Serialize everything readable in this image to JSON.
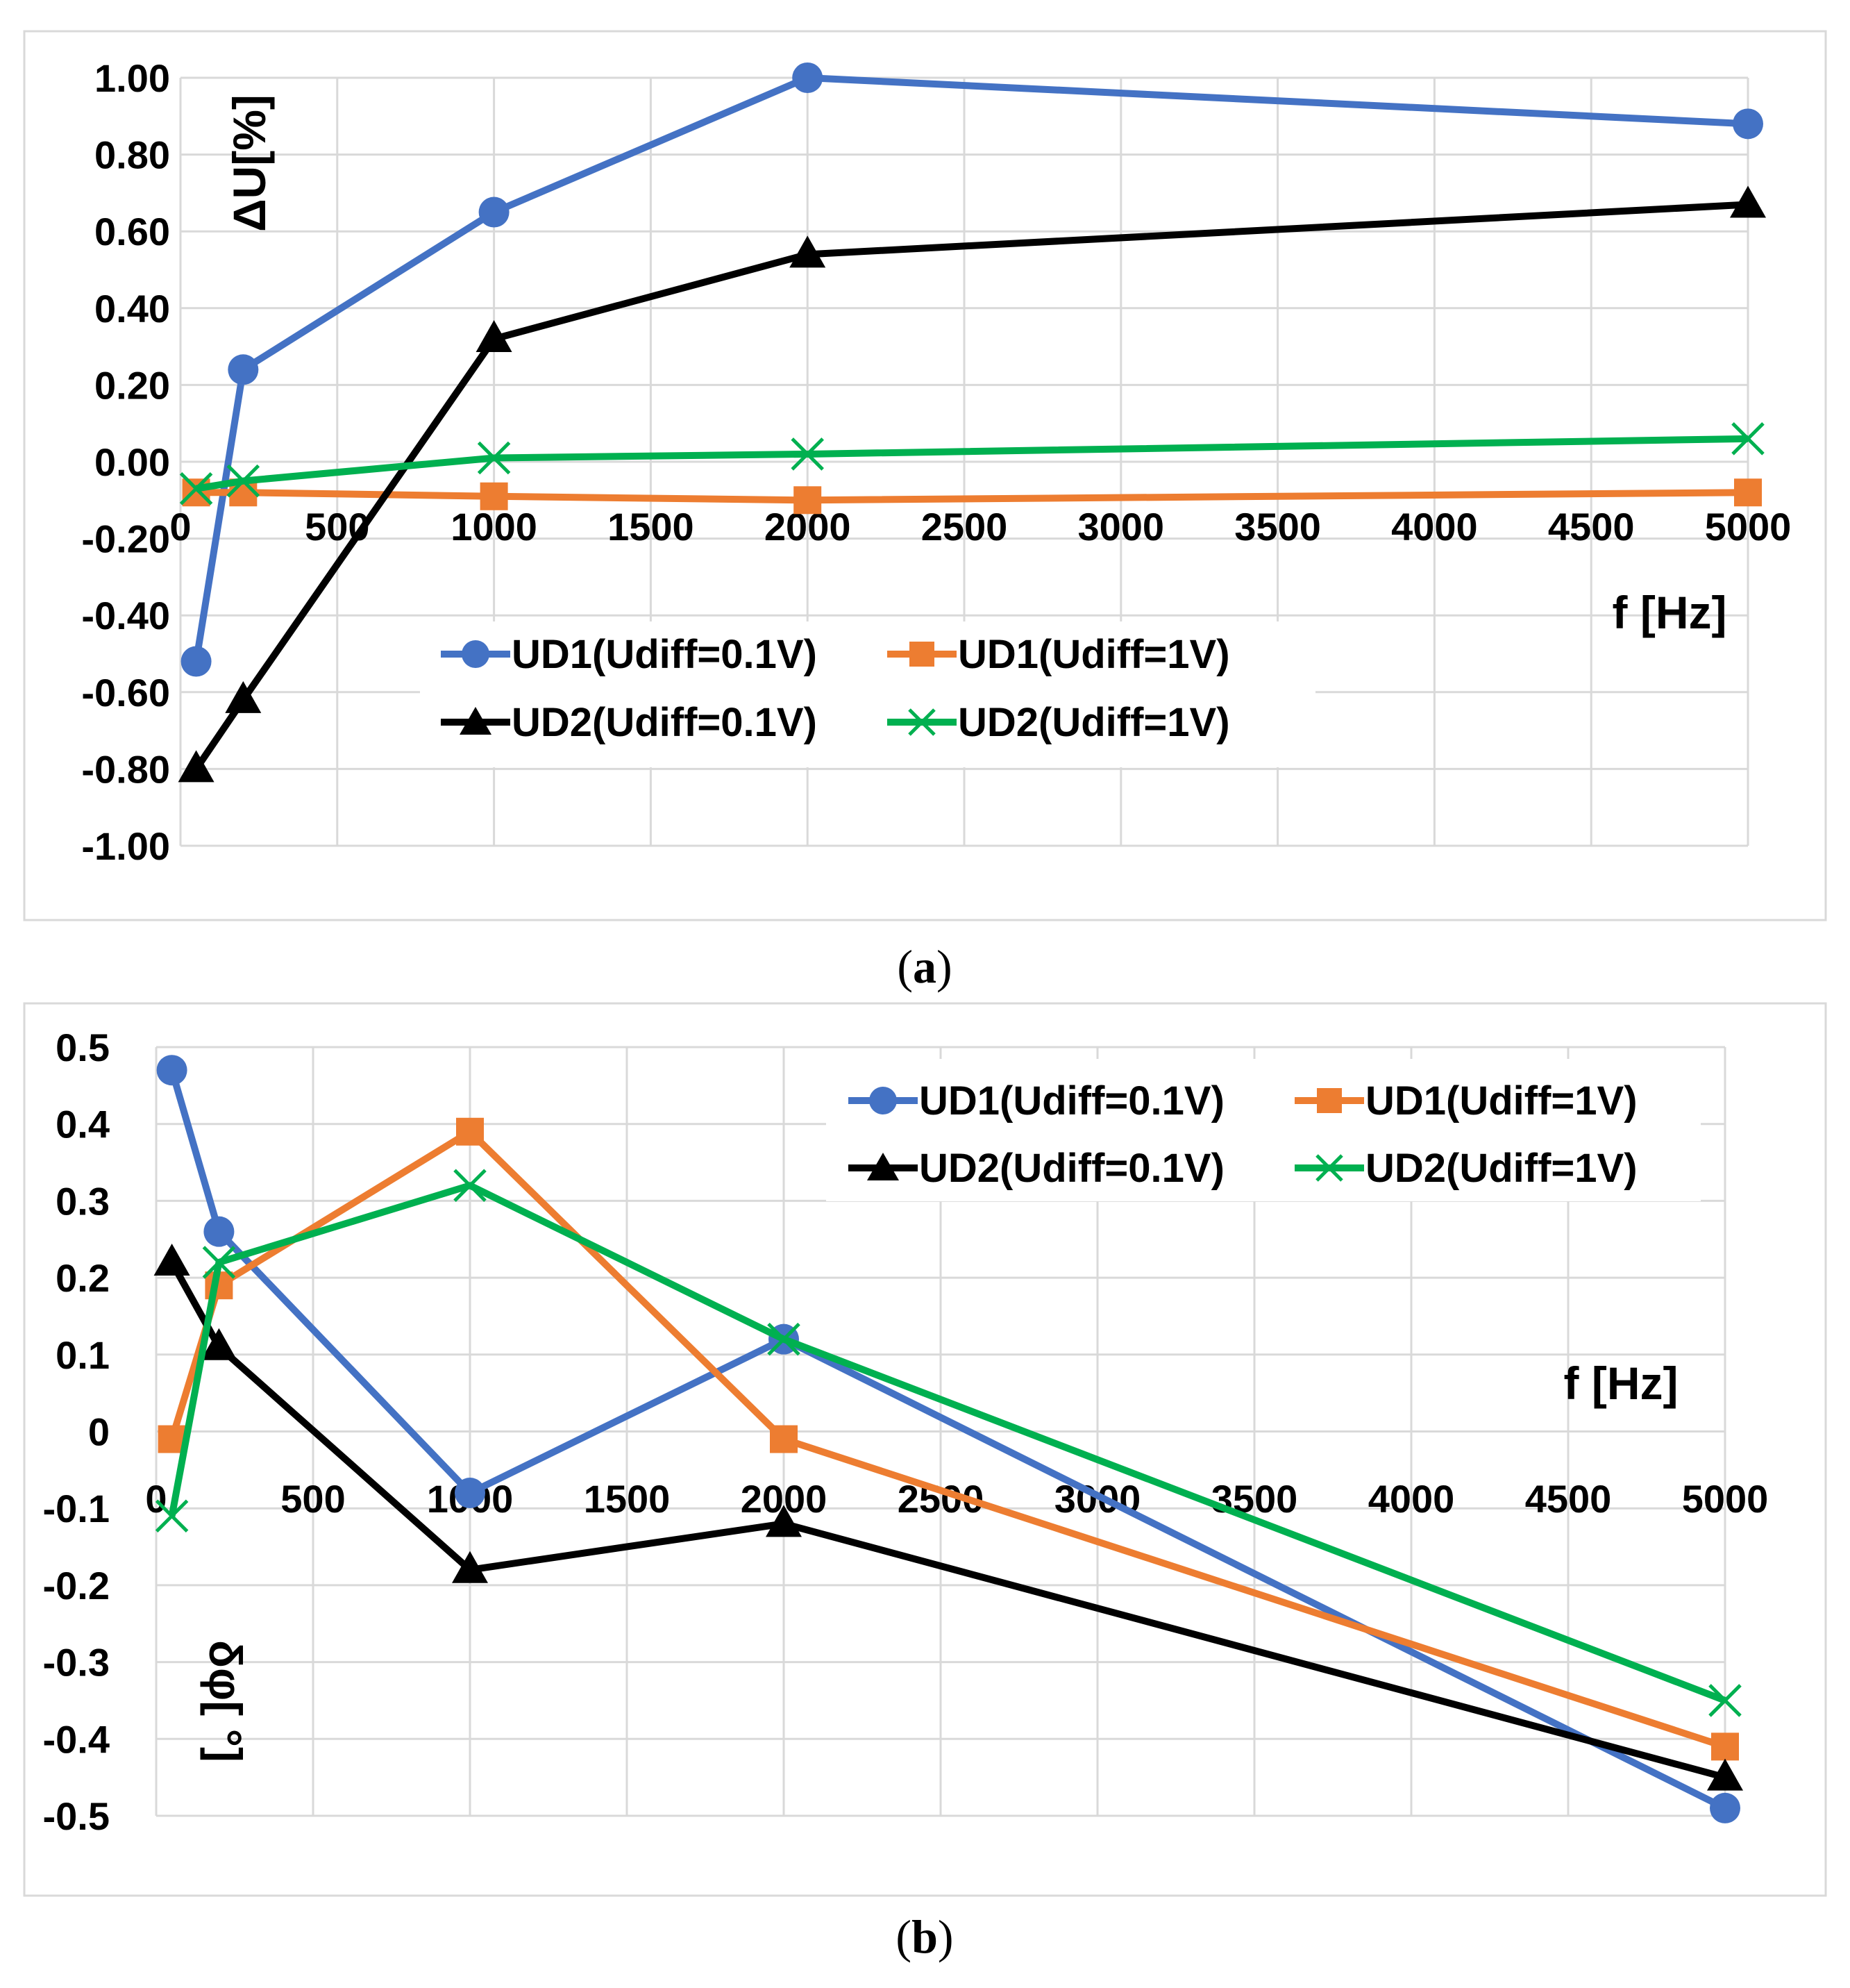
{
  "chart_data": [
    {
      "id": "a",
      "type": "line",
      "caption_open": "(",
      "caption_letter": "a",
      "caption_close": ")",
      "xlabel": "f [Hz]",
      "ylabel": "ΔU[%]",
      "xlim": [
        0,
        5000
      ],
      "ylim": [
        -1.0,
        1.0
      ],
      "xticks": [
        0,
        500,
        1000,
        1500,
        2000,
        2500,
        3000,
        3500,
        4000,
        4500,
        5000
      ],
      "yticks": [
        1.0,
        0.8,
        0.6,
        0.4,
        0.2,
        0.0,
        -0.2,
        -0.4,
        -0.6,
        -0.8,
        -1.0
      ],
      "xtick_labels": [
        "0",
        "500",
        "1000",
        "1500",
        "2000",
        "2500",
        "3000",
        "3500",
        "4000",
        "4500",
        "5000"
      ],
      "ytick_labels": [
        "1.00",
        "0.80",
        "0.60",
        "0.40",
        "0.20",
        "0.00",
        "-0.20",
        "-0.40",
        "-0.60",
        "-0.80",
        "-1.00"
      ],
      "legend_position": "middle",
      "series": [
        {
          "name": "UD1(Udiff=0.1V)",
          "color": "#4472c4",
          "marker": "circle",
          "x": [
            50,
            200,
            1000,
            2000,
            5000
          ],
          "y": [
            -0.52,
            0.24,
            0.65,
            1.0,
            0.88
          ]
        },
        {
          "name": "UD1(Udiff=1V)",
          "color": "#ed7d31",
          "marker": "square",
          "x": [
            50,
            200,
            1000,
            2000,
            5000
          ],
          "y": [
            -0.08,
            -0.08,
            -0.09,
            -0.1,
            -0.08
          ]
        },
        {
          "name": "UD2(Udiff=0.1V)",
          "color": "#000000",
          "marker": "triangle",
          "x": [
            50,
            200,
            1000,
            2000,
            5000
          ],
          "y": [
            -0.8,
            -0.62,
            0.32,
            0.54,
            0.67
          ]
        },
        {
          "name": "UD2(Udiff=1V)",
          "color": "#00b050",
          "marker": "x",
          "x": [
            50,
            200,
            1000,
            2000,
            5000
          ],
          "y": [
            -0.07,
            -0.05,
            0.01,
            0.02,
            0.06
          ]
        }
      ]
    },
    {
      "id": "b",
      "type": "line",
      "caption_open": "(",
      "caption_letter": "b",
      "caption_close": ")",
      "xlabel": "f [Hz]",
      "ylabel": "δφ[ °]",
      "xlim": [
        0,
        5000
      ],
      "ylim": [
        -0.5,
        0.5
      ],
      "xticks": [
        0,
        500,
        1000,
        1500,
        2000,
        2500,
        3000,
        3500,
        4000,
        4500,
        5000
      ],
      "yticks": [
        0.5,
        0.4,
        0.3,
        0.2,
        0.1,
        0,
        -0.1,
        -0.2,
        -0.3,
        -0.4,
        -0.5
      ],
      "xtick_labels": [
        "0",
        "500",
        "1000",
        "1500",
        "2000",
        "2500",
        "3000",
        "3500",
        "4000",
        "4500",
        "5000"
      ],
      "ytick_labels": [
        "0.5",
        "0.4",
        "0.3",
        "0.2",
        "0.1",
        "0",
        "-0.1",
        "-0.2",
        "-0.3",
        "-0.4",
        "-0.5"
      ],
      "legend_position": "top-right",
      "series": [
        {
          "name": "UD1(Udiff=0.1V)",
          "color": "#4472c4",
          "marker": "circle",
          "x": [
            50,
            200,
            1000,
            2000,
            5000
          ],
          "y": [
            0.47,
            0.26,
            -0.08,
            0.12,
            -0.49
          ]
        },
        {
          "name": "UD1(Udiff=1V)",
          "color": "#ed7d31",
          "marker": "square",
          "x": [
            50,
            200,
            1000,
            2000,
            5000
          ],
          "y": [
            -0.01,
            0.19,
            0.39,
            -0.01,
            -0.41
          ]
        },
        {
          "name": "UD2(Udiff=0.1V)",
          "color": "#000000",
          "marker": "triangle",
          "x": [
            50,
            200,
            1000,
            2000,
            5000
          ],
          "y": [
            0.22,
            0.11,
            -0.18,
            -0.12,
            -0.45
          ]
        },
        {
          "name": "UD2(Udiff=1V)",
          "color": "#00b050",
          "marker": "x",
          "x": [
            50,
            200,
            1000,
            2000,
            5000
          ],
          "y": [
            -0.11,
            0.22,
            0.32,
            0.12,
            -0.35
          ]
        }
      ]
    }
  ]
}
